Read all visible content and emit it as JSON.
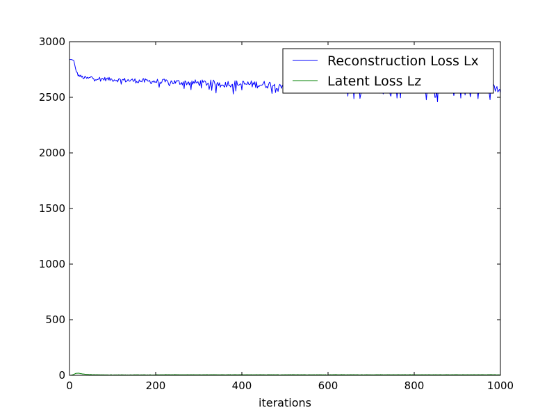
{
  "chart_data": {
    "type": "line",
    "title": "",
    "xlabel": "iterations",
    "ylabel": "",
    "xlim": [
      0,
      1000
    ],
    "ylim": [
      0,
      3000
    ],
    "xticks": [
      0,
      200,
      400,
      600,
      800,
      1000
    ],
    "yticks": [
      0,
      500,
      1000,
      1500,
      2000,
      2500,
      3000
    ],
    "grid": false,
    "legend_position": "top-right",
    "series": [
      {
        "name": "Reconstruction Loss Lx",
        "color": "#0000ff",
        "x": [
          0,
          5,
          10,
          15,
          20,
          25,
          30,
          35,
          40,
          45,
          50,
          55,
          60,
          70,
          80,
          90,
          100,
          120,
          140,
          160,
          180,
          200,
          250,
          300,
          350,
          400,
          450,
          500,
          550,
          600,
          650,
          700,
          750,
          800,
          850,
          900,
          950,
          1000
        ],
        "y": [
          2840,
          2840,
          2830,
          2740,
          2700,
          2690,
          2680,
          2675,
          2672,
          2670,
          2680,
          2672,
          2670,
          2668,
          2665,
          2663,
          2660,
          2655,
          2652,
          2648,
          2645,
          2642,
          2635,
          2630,
          2625,
          2620,
          2615,
          2610,
          2605,
          2600,
          2597,
          2595,
          2592,
          2590,
          2588,
          2586,
          2584,
          2582
        ],
        "noise": [
          0,
          0,
          0,
          6,
          12,
          14,
          16,
          16,
          16,
          16,
          16,
          16,
          16,
          17,
          18,
          18,
          18,
          20,
          22,
          22,
          22,
          24,
          26,
          28,
          30,
          32,
          34,
          36,
          36,
          38,
          40,
          40,
          40,
          42,
          42,
          42,
          44,
          44
        ]
      },
      {
        "name": "Latent Loss Lz",
        "color": "#008000",
        "x": [
          0,
          5,
          10,
          15,
          20,
          25,
          30,
          40,
          50,
          60,
          80,
          100,
          150,
          200,
          300,
          400,
          500,
          600,
          700,
          800,
          900,
          1000
        ],
        "y": [
          0,
          2,
          8,
          18,
          20,
          16,
          12,
          8,
          6,
          5,
          4,
          4,
          4,
          5,
          5,
          5,
          5,
          5,
          5,
          5,
          5,
          5
        ],
        "noise": [
          0,
          0,
          0,
          1,
          1,
          1,
          1,
          1,
          1,
          1,
          1,
          1,
          1,
          1,
          1,
          1,
          1,
          1,
          1,
          1,
          1,
          1
        ]
      }
    ]
  }
}
